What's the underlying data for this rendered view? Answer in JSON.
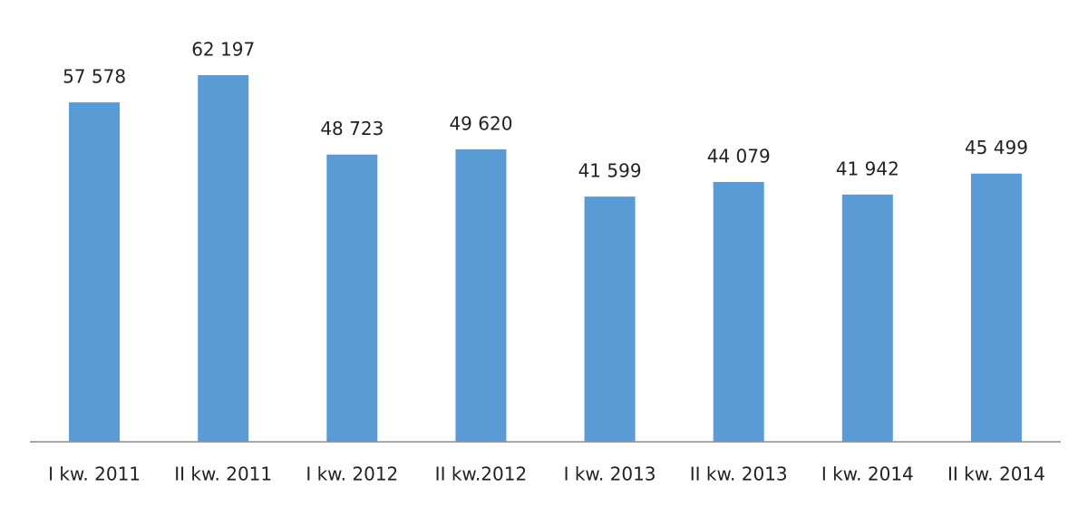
{
  "chart_data": {
    "type": "bar",
    "categories": [
      "I kw. 2011",
      "II kw. 2011",
      "I kw. 2012",
      "II kw.2012",
      "I kw. 2013",
      "II kw. 2013",
      "I kw. 2014",
      "II kw. 2014"
    ],
    "values": [
      57578,
      62197,
      48723,
      49620,
      41599,
      44079,
      41942,
      45499
    ],
    "value_labels": [
      "57 578",
      "62 197",
      "48 723",
      "49 620",
      "41 599",
      "44 079",
      "41 942",
      "45 499"
    ],
    "color": "#5b9bd5"
  }
}
